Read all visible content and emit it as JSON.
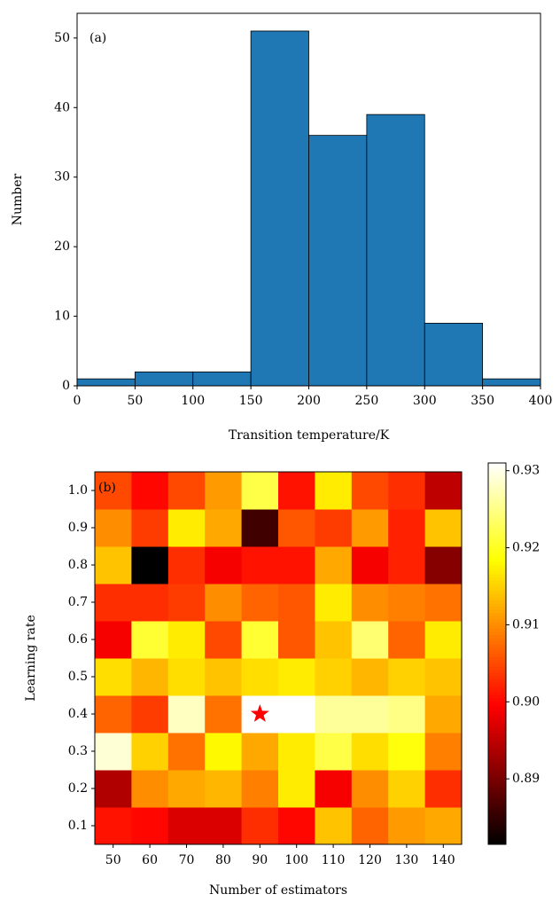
{
  "chart_data": [
    {
      "type": "histogram",
      "annotation": "(a)",
      "x_label": "Transition temperature/K",
      "y_label": "Number",
      "bins": [
        0,
        50,
        100,
        150,
        200,
        250,
        300,
        350,
        400
      ],
      "values": [
        1,
        2,
        2,
        51,
        36,
        39,
        9,
        1
      ],
      "color": "#1f77b4",
      "xlim": [
        0,
        400
      ],
      "ylim": [
        0,
        53.55
      ],
      "xticks": [
        0,
        50,
        100,
        150,
        200,
        250,
        300,
        350,
        400
      ],
      "yticks": [
        0,
        10,
        20,
        30,
        40,
        50
      ]
    },
    {
      "type": "heatmap",
      "annotation": "(b)",
      "x_label": "Number of estimators",
      "y_label": "Learning rate",
      "categories": [
        "50",
        "60",
        "70",
        "80",
        "90",
        "100",
        "110",
        "120",
        "130",
        "140"
      ],
      "y_categories": [
        "0.1",
        "0.2",
        "0.3",
        "0.4",
        "0.5",
        "0.6",
        "0.7",
        "0.8",
        "0.9",
        "1.0"
      ],
      "values": [
        [
          0.901,
          0.9,
          0.897,
          0.897,
          0.903,
          0.9,
          0.914,
          0.907,
          0.911,
          0.912
        ],
        [
          0.894,
          0.91,
          0.912,
          0.913,
          0.909,
          0.917,
          0.899,
          0.91,
          0.915,
          0.903
        ],
        [
          0.929,
          0.915,
          0.908,
          0.918,
          0.912,
          0.917,
          0.922,
          0.916,
          0.919,
          0.909
        ],
        [
          0.907,
          0.904,
          0.928,
          0.908,
          0.931,
          0.931,
          0.926,
          0.926,
          0.925,
          0.912
        ],
        [
          0.916,
          0.913,
          0.916,
          0.914,
          0.916,
          0.917,
          0.915,
          0.913,
          0.915,
          0.914
        ],
        [
          0.899,
          0.921,
          0.917,
          0.905,
          0.921,
          0.906,
          0.914,
          0.924,
          0.907,
          0.917
        ],
        [
          0.903,
          0.903,
          0.904,
          0.91,
          0.907,
          0.906,
          0.917,
          0.91,
          0.909,
          0.908
        ],
        [
          0.914,
          0.881,
          0.903,
          0.899,
          0.901,
          0.901,
          0.912,
          0.899,
          0.902,
          0.891
        ],
        [
          0.91,
          0.904,
          0.917,
          0.912,
          0.886,
          0.906,
          0.904,
          0.911,
          0.902,
          0.914
        ],
        [
          0.905,
          0.9,
          0.905,
          0.911,
          0.922,
          0.901,
          0.917,
          0.905,
          0.903,
          0.895
        ]
      ],
      "colormap": "hot",
      "clim": [
        0.8815,
        0.931
      ],
      "cbar_ticks": [
        0.89,
        {
          "value": 0.9,
          "label": "0.90"
        },
        0.91,
        0.92,
        0.93
      ],
      "star": {
        "x": 90,
        "y": 0.4,
        "color": "#ff0000"
      }
    }
  ]
}
